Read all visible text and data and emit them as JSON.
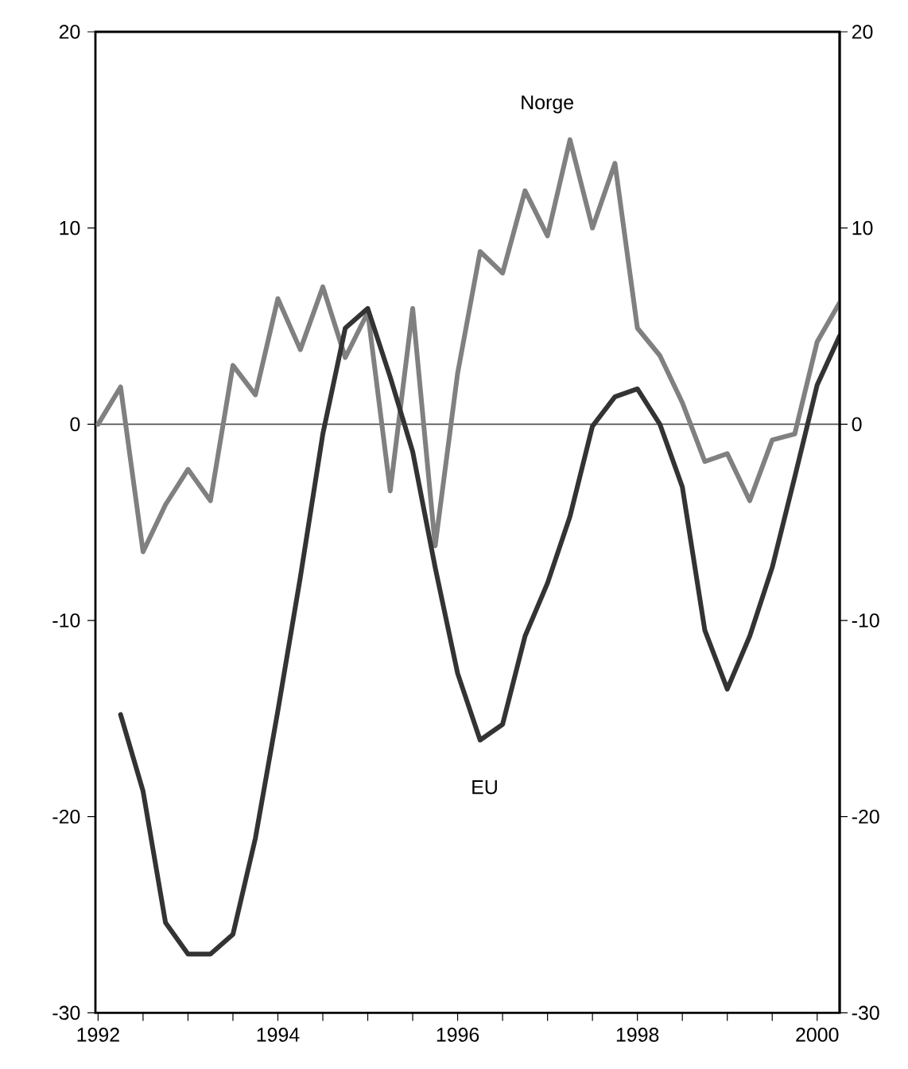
{
  "chart_data": {
    "type": "line",
    "xlim": [
      1991.97,
      2000.25
    ],
    "xticks": [
      {
        "value": 1992,
        "label": "1992"
      },
      {
        "value": 1992.5,
        "label": null
      },
      {
        "value": 1993,
        "label": null
      },
      {
        "value": 1993.5,
        "label": null
      },
      {
        "value": 1994,
        "label": "1994"
      },
      {
        "value": 1994.5,
        "label": null
      },
      {
        "value": 1995,
        "label": null
      },
      {
        "value": 1995.5,
        "label": null
      },
      {
        "value": 1996,
        "label": "1996"
      },
      {
        "value": 1996.5,
        "label": null
      },
      {
        "value": 1997,
        "label": null
      },
      {
        "value": 1997.5,
        "label": null
      },
      {
        "value": 1998,
        "label": "1998"
      },
      {
        "value": 1998.5,
        "label": null
      },
      {
        "value": 1999,
        "label": null
      },
      {
        "value": 1999.5,
        "label": null
      },
      {
        "value": 2000,
        "label": "2000"
      }
    ],
    "ylim": [
      -30,
      20
    ],
    "yticks": [
      -30,
      -20,
      -10,
      0,
      10,
      20
    ],
    "y2lim": [
      -30,
      20
    ],
    "y2ticks": [
      -30,
      -20,
      -10,
      0,
      10,
      20
    ],
    "marker": "none",
    "line_style": "solid",
    "ref_lines": [
      {
        "axis": "y",
        "value": 0,
        "color": "#555555"
      }
    ],
    "annotations": [
      "Norge",
      "EU"
    ],
    "series": [
      {
        "color": "#808080",
        "x": [
          1992.0,
          1992.25,
          1992.5,
          1992.75,
          1993.0,
          1993.25,
          1993.5,
          1993.75,
          1994.0,
          1994.25,
          1994.5,
          1994.75,
          1995.0,
          1995.25,
          1995.5,
          1995.75,
          1996.0,
          1996.25,
          1996.5,
          1996.75,
          1997.0,
          1997.25,
          1997.5,
          1997.75,
          1998.0,
          1998.25,
          1998.5,
          1998.75,
          1999.0,
          1999.25,
          1999.5,
          1999.75,
          2000.0,
          2000.25
        ],
        "values": [
          0,
          1.9,
          -6.5,
          -4.1,
          -2.3,
          -3.9,
          3.0,
          1.5,
          6.4,
          3.8,
          7.0,
          3.4,
          5.7,
          -3.4,
          5.9,
          -6.2,
          2.6,
          8.8,
          7.7,
          11.9,
          9.6,
          14.5,
          10.0,
          13.3,
          4.9,
          3.5,
          1.1,
          -1.9,
          -1.5,
          -3.9,
          -0.8,
          -0.5,
          4.2,
          6.2
        ]
      },
      {
        "color": "#333333",
        "x": [
          1992.25,
          1992.5,
          1992.75,
          1993.0,
          1993.25,
          1993.5,
          1993.75,
          1994.0,
          1994.25,
          1994.5,
          1994.75,
          1995.0,
          1995.25,
          1995.5,
          1995.75,
          1996.0,
          1996.25,
          1996.5,
          1996.75,
          1997.0,
          1997.25,
          1997.5,
          1997.75,
          1998.0,
          1998.25,
          1998.5,
          1998.75,
          1999.0,
          1999.25,
          1999.5,
          1999.75,
          2000.0,
          2000.25
        ],
        "values": [
          -14.8,
          -18.7,
          -25.4,
          -27.0,
          -27.0,
          -26.0,
          -21.1,
          -14.6,
          -7.8,
          -0.5,
          4.9,
          5.9,
          2.4,
          -1.4,
          -7.3,
          -12.7,
          -16.1,
          -15.3,
          -10.8,
          -8.1,
          -4.7,
          -0.1,
          1.4,
          1.8,
          0,
          -3.2,
          -10.5,
          -13.5,
          -10.8,
          -7.3,
          -2.7,
          2.0,
          4.5
        ]
      }
    ]
  }
}
